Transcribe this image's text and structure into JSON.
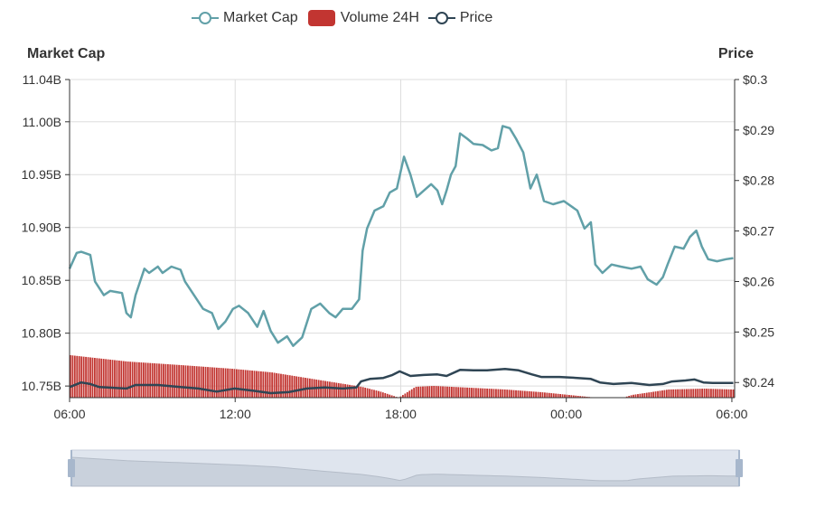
{
  "chart_data": {
    "type": "line",
    "legend": {
      "position": "top-center",
      "items": [
        "Market Cap",
        "Volume 24H",
        "Price"
      ]
    },
    "left_axis": {
      "title": "Market Cap",
      "ticks": [
        "10.75B",
        "10.80B",
        "10.85B",
        "10.90B",
        "10.95B",
        "11.00B",
        "11.04B"
      ],
      "tick_values": [
        10.75,
        10.8,
        10.85,
        10.9,
        10.95,
        11.0,
        11.04
      ],
      "range": [
        10.739,
        11.04
      ]
    },
    "right_axis": {
      "title": "Price",
      "ticks": [
        "$0.24",
        "$0.25",
        "$0.26",
        "$0.27",
        "$0.28",
        "$0.29",
        "$0.3"
      ],
      "tick_values": [
        0.24,
        0.25,
        0.26,
        0.27,
        0.28,
        0.29,
        0.3
      ],
      "range": [
        0.237,
        0.3
      ]
    },
    "x_axis": {
      "ticks": [
        "06:00",
        "12:00",
        "18:00",
        "00:00",
        "06:00"
      ],
      "tick_hours": [
        0,
        6,
        12,
        18,
        24
      ],
      "range_hours": [
        0,
        24.1
      ],
      "unit": "hours since 06:00"
    },
    "colors": {
      "market_cap": "#61a0a8",
      "volume": "#c23531",
      "price": "#2f4554",
      "grid": "#dddddd"
    },
    "series": [
      {
        "name": "Market Cap",
        "axis": "left",
        "unit": "B",
        "points": [
          [
            0,
            10.861
          ],
          [
            0.26,
            10.876
          ],
          [
            0.42,
            10.877
          ],
          [
            0.75,
            10.874
          ],
          [
            0.92,
            10.849
          ],
          [
            1.24,
            10.836
          ],
          [
            1.47,
            10.84
          ],
          [
            1.9,
            10.838
          ],
          [
            2.06,
            10.819
          ],
          [
            2.22,
            10.815
          ],
          [
            2.39,
            10.836
          ],
          [
            2.71,
            10.861
          ],
          [
            2.88,
            10.857
          ],
          [
            3.2,
            10.863
          ],
          [
            3.37,
            10.857
          ],
          [
            3.69,
            10.863
          ],
          [
            4.02,
            10.86
          ],
          [
            4.18,
            10.849
          ],
          [
            4.51,
            10.836
          ],
          [
            4.84,
            10.823
          ],
          [
            5.16,
            10.819
          ],
          [
            5.39,
            10.804
          ],
          [
            5.65,
            10.811
          ],
          [
            5.92,
            10.823
          ],
          [
            6.14,
            10.826
          ],
          [
            6.47,
            10.819
          ],
          [
            6.8,
            10.806
          ],
          [
            7.03,
            10.821
          ],
          [
            7.29,
            10.802
          ],
          [
            7.55,
            10.791
          ],
          [
            7.88,
            10.797
          ],
          [
            8.1,
            10.788
          ],
          [
            8.43,
            10.796
          ],
          [
            8.76,
            10.823
          ],
          [
            9.08,
            10.828
          ],
          [
            9.41,
            10.819
          ],
          [
            9.64,
            10.815
          ],
          [
            9.9,
            10.823
          ],
          [
            10.23,
            10.823
          ],
          [
            10.49,
            10.832
          ],
          [
            10.62,
            10.878
          ],
          [
            10.78,
            10.899
          ],
          [
            11.05,
            10.916
          ],
          [
            11.37,
            10.92
          ],
          [
            11.6,
            10.933
          ],
          [
            11.86,
            10.937
          ],
          [
            12.12,
            10.967
          ],
          [
            12.35,
            10.95
          ],
          [
            12.58,
            10.929
          ],
          [
            12.84,
            10.935
          ],
          [
            13.1,
            10.941
          ],
          [
            13.33,
            10.935
          ],
          [
            13.5,
            10.922
          ],
          [
            13.66,
            10.935
          ],
          [
            13.82,
            10.95
          ],
          [
            13.99,
            10.958
          ],
          [
            14.15,
            10.989
          ],
          [
            14.41,
            10.984
          ],
          [
            14.64,
            10.979
          ],
          [
            14.97,
            10.978
          ],
          [
            15.29,
            10.973
          ],
          [
            15.52,
            10.975
          ],
          [
            15.69,
            10.996
          ],
          [
            15.95,
            10.994
          ],
          [
            16.18,
            10.984
          ],
          [
            16.44,
            10.971
          ],
          [
            16.7,
            10.937
          ],
          [
            16.93,
            10.95
          ],
          [
            17.19,
            10.925
          ],
          [
            17.52,
            10.922
          ],
          [
            17.91,
            10.925
          ],
          [
            18.4,
            10.916
          ],
          [
            18.66,
            10.899
          ],
          [
            18.89,
            10.905
          ],
          [
            19.05,
            10.865
          ],
          [
            19.31,
            10.857
          ],
          [
            19.64,
            10.865
          ],
          [
            19.97,
            10.863
          ],
          [
            20.36,
            10.861
          ],
          [
            20.69,
            10.863
          ],
          [
            20.95,
            10.851
          ],
          [
            21.27,
            10.846
          ],
          [
            21.5,
            10.853
          ],
          [
            21.67,
            10.865
          ],
          [
            21.93,
            10.882
          ],
          [
            22.25,
            10.88
          ],
          [
            22.48,
            10.891
          ],
          [
            22.71,
            10.897
          ],
          [
            22.91,
            10.882
          ],
          [
            23.14,
            10.87
          ],
          [
            23.46,
            10.868
          ],
          [
            23.79,
            10.87
          ],
          [
            24.05,
            10.871
          ]
        ]
      },
      {
        "name": "Price",
        "axis": "right",
        "unit": "$",
        "points": [
          [
            0,
            0.2391
          ],
          [
            0.42,
            0.24
          ],
          [
            0.75,
            0.2397
          ],
          [
            1.08,
            0.2391
          ],
          [
            2.06,
            0.2388
          ],
          [
            2.39,
            0.2395
          ],
          [
            3.2,
            0.2395
          ],
          [
            4.02,
            0.2391
          ],
          [
            4.67,
            0.2388
          ],
          [
            5.33,
            0.2382
          ],
          [
            5.98,
            0.2388
          ],
          [
            6.63,
            0.2384
          ],
          [
            7.29,
            0.2379
          ],
          [
            7.94,
            0.2381
          ],
          [
            8.6,
            0.2388
          ],
          [
            9.25,
            0.239
          ],
          [
            9.9,
            0.2388
          ],
          [
            10.39,
            0.239
          ],
          [
            10.56,
            0.2402
          ],
          [
            10.88,
            0.2407
          ],
          [
            11.37,
            0.2409
          ],
          [
            11.7,
            0.2415
          ],
          [
            11.96,
            0.2422
          ],
          [
            12.35,
            0.2413
          ],
          [
            12.84,
            0.2415
          ],
          [
            13.33,
            0.2416
          ],
          [
            13.66,
            0.2413
          ],
          [
            14.15,
            0.2425
          ],
          [
            14.64,
            0.2424
          ],
          [
            15.13,
            0.2424
          ],
          [
            15.78,
            0.2427
          ],
          [
            16.27,
            0.2424
          ],
          [
            16.76,
            0.2416
          ],
          [
            17.09,
            0.2411
          ],
          [
            17.75,
            0.2411
          ],
          [
            18.4,
            0.2409
          ],
          [
            18.89,
            0.2407
          ],
          [
            19.22,
            0.24
          ],
          [
            19.71,
            0.2397
          ],
          [
            20.36,
            0.2399
          ],
          [
            21.01,
            0.2395
          ],
          [
            21.5,
            0.2397
          ],
          [
            21.83,
            0.2402
          ],
          [
            22.32,
            0.2404
          ],
          [
            22.65,
            0.2406
          ],
          [
            22.97,
            0.24
          ],
          [
            23.3,
            0.2399
          ],
          [
            24.05,
            0.2399
          ]
        ]
      },
      {
        "name": "Volume 24H",
        "axis": "hidden",
        "unit": "relative index",
        "points": [
          [
            0,
            47
          ],
          [
            2.06,
            40
          ],
          [
            4.02,
            36
          ],
          [
            5.85,
            32
          ],
          [
            7.29,
            28
          ],
          [
            8.92,
            20
          ],
          [
            10.56,
            12
          ],
          [
            11.21,
            7
          ],
          [
            11.9,
            0
          ],
          [
            12.51,
            12
          ],
          [
            13.17,
            13
          ],
          [
            14.48,
            11
          ],
          [
            15.78,
            9
          ],
          [
            17.09,
            6
          ],
          [
            18.4,
            2
          ],
          [
            19.05,
            0
          ],
          [
            20.03,
            0
          ],
          [
            20.36,
            3
          ],
          [
            21.67,
            9
          ],
          [
            22.97,
            10
          ],
          [
            24.05,
            9
          ]
        ]
      }
    ]
  },
  "data_zoom": {
    "start_percent": 0,
    "end_percent": 100
  }
}
